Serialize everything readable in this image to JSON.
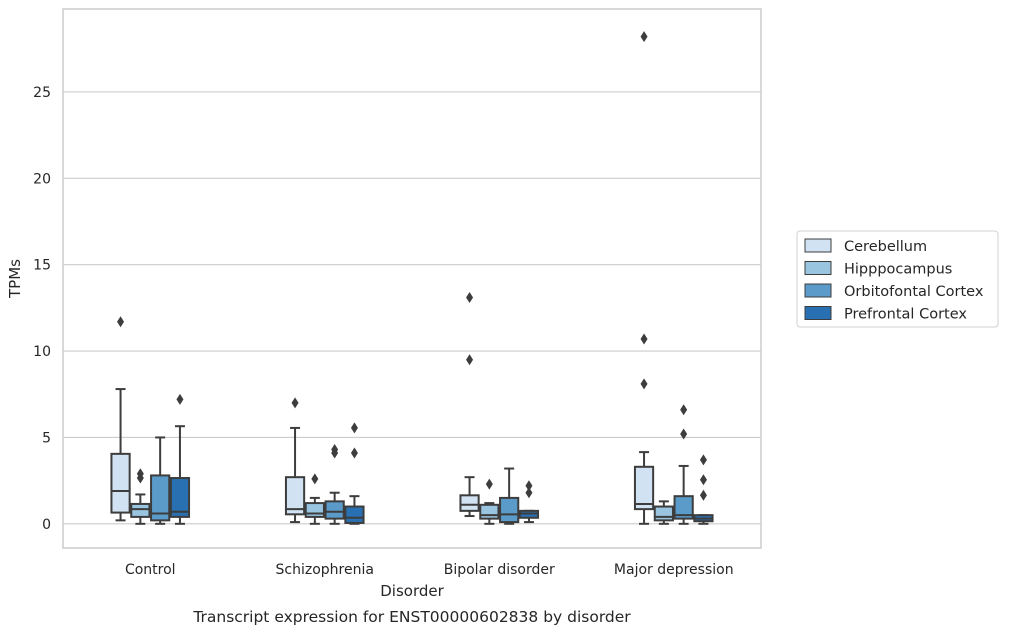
{
  "chart_data": {
    "type": "box",
    "caption": "Transcript expression for ENST00000602838 by disorder",
    "xlabel": "Disorder",
    "ylabel": "TPMs",
    "ylim": [
      -1.4,
      29.8
    ],
    "yticks": [
      0,
      5,
      10,
      15,
      20,
      25
    ],
    "grid": "horizontal",
    "legend_position": "right",
    "categories": [
      "Control",
      "Schizophrenia",
      "Bipolar disorder",
      "Major depression"
    ],
    "series": [
      {
        "name": "Cerebellum",
        "color": "#d1e2f2",
        "boxes": [
          {
            "whisker_low": 0.2,
            "q1": 0.65,
            "median": 1.9,
            "q3": 4.05,
            "whisker_high": 7.8,
            "outliers": [
              11.7
            ]
          },
          {
            "whisker_low": 0.1,
            "q1": 0.55,
            "median": 0.85,
            "q3": 2.7,
            "whisker_high": 5.55,
            "outliers": [
              7.0
            ]
          },
          {
            "whisker_low": 0.45,
            "q1": 0.75,
            "median": 1.1,
            "q3": 1.65,
            "whisker_high": 2.7,
            "outliers": [
              9.5,
              13.1
            ]
          },
          {
            "whisker_low": 0.0,
            "q1": 0.85,
            "median": 1.15,
            "q3": 3.3,
            "whisker_high": 4.15,
            "outliers": [
              8.1,
              10.7,
              28.2
            ]
          }
        ]
      },
      {
        "name": "Hipppocampus",
        "color": "#9ac5e0",
        "boxes": [
          {
            "whisker_low": 0.0,
            "q1": 0.4,
            "median": 0.85,
            "q3": 1.15,
            "whisker_high": 1.7,
            "outliers": [
              2.65,
              2.9
            ]
          },
          {
            "whisker_low": 0.0,
            "q1": 0.4,
            "median": 0.6,
            "q3": 1.2,
            "whisker_high": 1.5,
            "outliers": [
              2.6
            ]
          },
          {
            "whisker_low": 0.0,
            "q1": 0.3,
            "median": 0.5,
            "q3": 1.1,
            "whisker_high": 1.2,
            "outliers": [
              2.3
            ]
          },
          {
            "whisker_low": 0.0,
            "q1": 0.2,
            "median": 0.4,
            "q3": 1.0,
            "whisker_high": 1.3,
            "outliers": []
          }
        ]
      },
      {
        "name": "Orbitofontal Cortex",
        "color": "#5a9bc9",
        "boxes": [
          {
            "whisker_low": 0.0,
            "q1": 0.2,
            "median": 0.6,
            "q3": 2.8,
            "whisker_high": 5.0,
            "outliers": []
          },
          {
            "whisker_low": 0.0,
            "q1": 0.3,
            "median": 0.7,
            "q3": 1.3,
            "whisker_high": 1.8,
            "outliers": [
              4.1,
              4.3
            ]
          },
          {
            "whisker_low": 0.0,
            "q1": 0.1,
            "median": 0.55,
            "q3": 1.5,
            "whisker_high": 3.2,
            "outliers": []
          },
          {
            "whisker_low": 0.0,
            "q1": 0.3,
            "median": 0.5,
            "q3": 1.6,
            "whisker_high": 3.35,
            "outliers": [
              5.2,
              6.6
            ]
          }
        ]
      },
      {
        "name": "Prefrontal Cortex",
        "color": "#2870b1",
        "boxes": [
          {
            "whisker_low": 0.0,
            "q1": 0.4,
            "median": 0.7,
            "q3": 2.65,
            "whisker_high": 5.65,
            "outliers": [
              7.2
            ]
          },
          {
            "whisker_low": 0.0,
            "q1": 0.05,
            "median": 0.35,
            "q3": 1.0,
            "whisker_high": 1.6,
            "outliers": [
              4.1,
              5.55
            ]
          },
          {
            "whisker_low": 0.1,
            "q1": 0.35,
            "median": 0.6,
            "q3": 0.75,
            "whisker_high": 0.75,
            "outliers": [
              1.8,
              2.2
            ]
          },
          {
            "whisker_low": 0.0,
            "q1": 0.15,
            "median": 0.3,
            "q3": 0.5,
            "whisker_high": 0.5,
            "outliers": [
              1.65,
              2.55,
              3.7
            ]
          }
        ]
      }
    ]
  }
}
